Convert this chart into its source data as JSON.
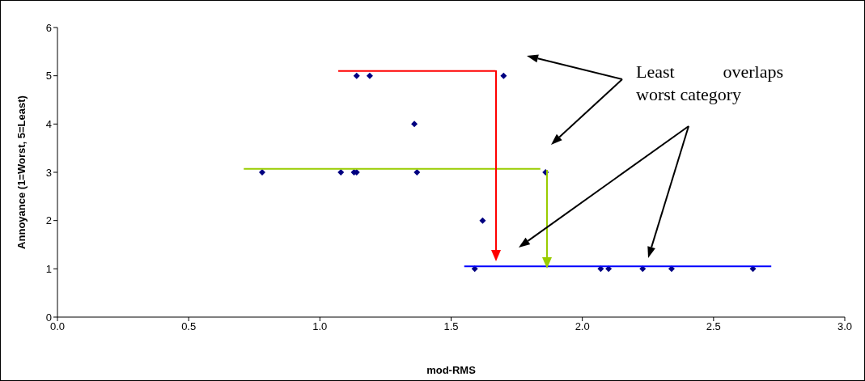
{
  "chart_data": {
    "type": "scatter",
    "xlabel": "mod-RMS",
    "ylabel": "Annoyance (1=Worst, 5=Least)",
    "xlim": [
      0,
      3
    ],
    "xticks": [
      {
        "value": 0,
        "label": "0.0"
      },
      {
        "value": 0.5,
        "label": "0.5"
      },
      {
        "value": 1,
        "label": "1.0"
      },
      {
        "value": 1.5,
        "label": "1.5"
      },
      {
        "value": 2,
        "label": "2.0"
      },
      {
        "value": 2.5,
        "label": "2.5"
      },
      {
        "value": 3,
        "label": "3.0"
      }
    ],
    "ylim": [
      0,
      6
    ],
    "yticks": [
      0,
      1,
      2,
      3,
      4,
      5,
      6
    ],
    "grid": false,
    "legend": false,
    "marker": "diamond",
    "annotations": [
      "Least overlaps worst category"
    ],
    "series": [
      {
        "color": "#000080",
        "x": [
          0.78,
          1.08,
          1.13,
          1.14,
          1.37,
          1.86,
          1.14,
          1.19,
          1.7,
          1.36,
          1.62,
          1.59,
          2.07,
          2.1,
          2.23,
          2.34,
          2.65
        ],
        "values": [
          3,
          3,
          3,
          3,
          3,
          3,
          5,
          5,
          5,
          4,
          2,
          1,
          1,
          1,
          1,
          1,
          1
        ]
      },
      {
        "type": "line",
        "color": "#ff0000",
        "x": [
          1.07,
          1.67
        ],
        "values": [
          5.1,
          5.1
        ],
        "marker": "none"
      },
      {
        "type": "line",
        "color": "#99cc00",
        "x": [
          0.71,
          1.84
        ],
        "values": [
          3.07,
          3.07
        ],
        "marker": "none"
      },
      {
        "type": "line",
        "color": "#0000ff",
        "x": [
          1.55,
          2.72
        ],
        "values": [
          1.05,
          1.05
        ],
        "marker": "none"
      }
    ]
  }
}
